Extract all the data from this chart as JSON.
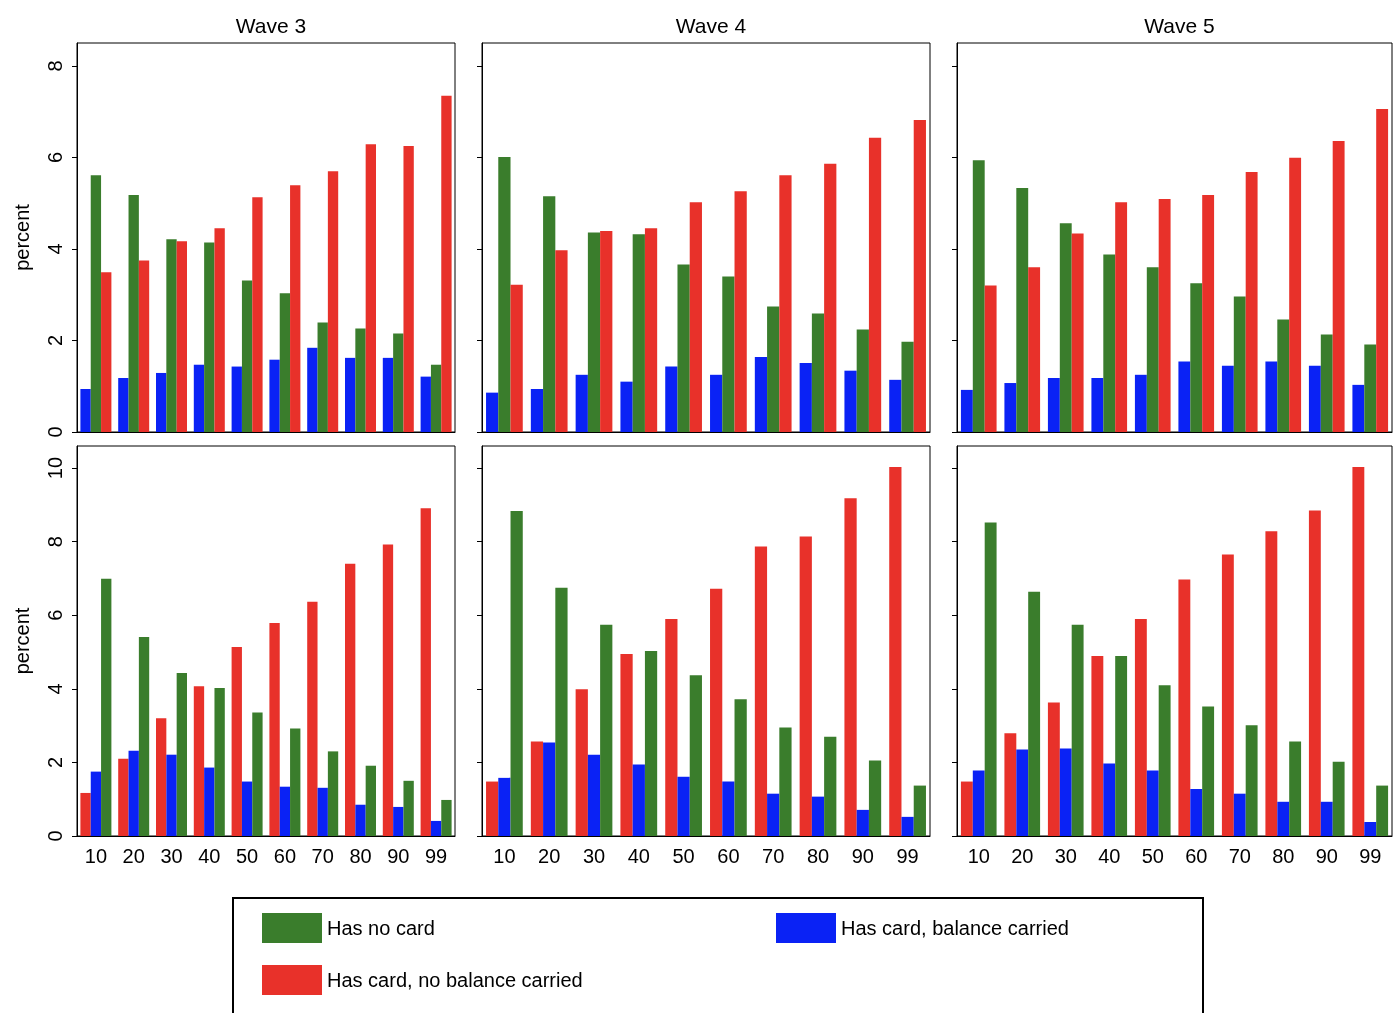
{
  "chart_data": [
    {
      "type": "bar",
      "title": "Wave 3",
      "ylabel": "percent",
      "categories": [
        "10",
        "20",
        "30",
        "40",
        "50",
        "60",
        "70",
        "80",
        "90",
        "99"
      ],
      "ylim": [
        0,
        8.5
      ],
      "yticks": [
        0,
        2,
        4,
        6,
        8
      ],
      "tick_labels": "y",
      "legend": "bottom",
      "series": [
        {
          "name": "Has card, balance carried",
          "color": "#0a22f5",
          "values": [
            0.94,
            1.18,
            1.29,
            1.47,
            1.43,
            1.58,
            1.84,
            1.62,
            1.62,
            1.21
          ]
        },
        {
          "name": "Has no card",
          "color": "#3a7d2c",
          "values": [
            5.61,
            5.18,
            4.21,
            4.14,
            3.31,
            3.03,
            2.39,
            2.26,
            2.15,
            1.47
          ]
        },
        {
          "name": "Has card, no balance carried",
          "color": "#e8312a",
          "values": [
            3.49,
            3.75,
            4.17,
            4.45,
            5.13,
            5.39,
            5.7,
            6.29,
            6.25,
            7.35
          ]
        }
      ]
    },
    {
      "type": "bar",
      "title": "Wave 4",
      "categories": [
        "10",
        "20",
        "30",
        "40",
        "50",
        "60",
        "70",
        "80",
        "90",
        "99"
      ],
      "ylim": [
        0,
        8.5
      ],
      "yticks": [
        0,
        2,
        4,
        6,
        8
      ],
      "tick_labels": false,
      "series": [
        {
          "color": "#0a22f5",
          "values": [
            0.86,
            0.94,
            1.25,
            1.1,
            1.43,
            1.25,
            1.64,
            1.51,
            1.34,
            1.14
          ]
        },
        {
          "color": "#3a7d2c",
          "values": [
            6.01,
            5.15,
            4.36,
            4.32,
            3.66,
            3.4,
            2.74,
            2.59,
            2.24,
            1.97
          ]
        },
        {
          "color": "#e8312a",
          "values": [
            3.22,
            3.97,
            4.39,
            4.45,
            5.02,
            5.26,
            5.61,
            5.86,
            6.43,
            6.82
          ]
        }
      ]
    },
    {
      "type": "bar",
      "title": "Wave 5",
      "categories": [
        "10",
        "20",
        "30",
        "40",
        "50",
        "60",
        "70",
        "80",
        "90",
        "99"
      ],
      "ylim": [
        0,
        8.5
      ],
      "yticks": [
        0,
        2,
        4,
        6,
        8
      ],
      "tick_labels": false,
      "series": [
        {
          "color": "#0a22f5",
          "values": [
            0.92,
            1.07,
            1.18,
            1.18,
            1.25,
            1.54,
            1.45,
            1.54,
            1.45,
            1.03
          ]
        },
        {
          "color": "#3a7d2c",
          "values": [
            5.94,
            5.33,
            4.56,
            3.88,
            3.6,
            3.25,
            2.96,
            2.46,
            2.13,
            1.91
          ]
        },
        {
          "color": "#e8312a",
          "values": [
            3.2,
            3.6,
            4.34,
            5.02,
            5.09,
            5.18,
            5.68,
            5.99,
            6.36,
            7.06
          ]
        }
      ]
    },
    {
      "type": "bar",
      "ylabel": "percent",
      "categories": [
        "10",
        "20",
        "30",
        "40",
        "50",
        "60",
        "70",
        "80",
        "90",
        "99"
      ],
      "ylim": [
        0,
        10.6
      ],
      "yticks": [
        0,
        2,
        4,
        6,
        8,
        10
      ],
      "series": [
        {
          "color": "#e8312a",
          "values": [
            1.17,
            2.1,
            3.2,
            4.07,
            5.14,
            5.79,
            6.37,
            7.4,
            7.92,
            8.91
          ]
        },
        {
          "color": "#0a22f5",
          "values": [
            1.75,
            2.32,
            2.21,
            1.86,
            1.48,
            1.34,
            1.31,
            0.85,
            0.79,
            0.41
          ]
        },
        {
          "color": "#3a7d2c",
          "values": [
            6.99,
            5.41,
            4.43,
            4.02,
            3.36,
            2.92,
            2.3,
            1.91,
            1.5,
            0.98
          ]
        }
      ]
    },
    {
      "type": "bar",
      "categories": [
        "10",
        "20",
        "30",
        "40",
        "50",
        "60",
        "70",
        "80",
        "90",
        "99"
      ],
      "ylim": [
        0,
        10.6
      ],
      "yticks": [
        0,
        2,
        4,
        6,
        8,
        10
      ],
      "tick_labels": "x",
      "series": [
        {
          "color": "#e8312a",
          "values": [
            1.48,
            2.57,
            3.99,
            4.95,
            5.9,
            6.72,
            7.87,
            8.14,
            9.18,
            10.03
          ]
        },
        {
          "color": "#0a22f5",
          "values": [
            1.58,
            2.54,
            2.21,
            1.94,
            1.61,
            1.48,
            1.15,
            1.07,
            0.71,
            0.52
          ]
        },
        {
          "color": "#3a7d2c",
          "values": [
            8.83,
            6.75,
            5.74,
            5.03,
            4.37,
            3.72,
            2.95,
            2.7,
            2.05,
            1.37
          ]
        }
      ]
    },
    {
      "type": "bar",
      "categories": [
        "10",
        "20",
        "30",
        "40",
        "50",
        "60",
        "70",
        "80",
        "90",
        "99"
      ],
      "ylim": [
        0,
        10.6
      ],
      "yticks": [
        0,
        2,
        4,
        6,
        8,
        10
      ],
      "tick_labels": "x",
      "series": [
        {
          "color": "#e8312a",
          "values": [
            1.48,
            2.79,
            3.63,
            4.89,
            5.9,
            6.97,
            7.65,
            8.28,
            8.85,
            10.03
          ]
        },
        {
          "color": "#0a22f5",
          "values": [
            1.78,
            2.35,
            2.38,
            1.97,
            1.78,
            1.28,
            1.15,
            0.93,
            0.93,
            0.38
          ]
        },
        {
          "color": "#3a7d2c",
          "values": [
            8.52,
            6.64,
            5.74,
            4.89,
            4.1,
            3.52,
            3.01,
            2.57,
            2.02,
            1.37
          ]
        }
      ]
    }
  ]
}
